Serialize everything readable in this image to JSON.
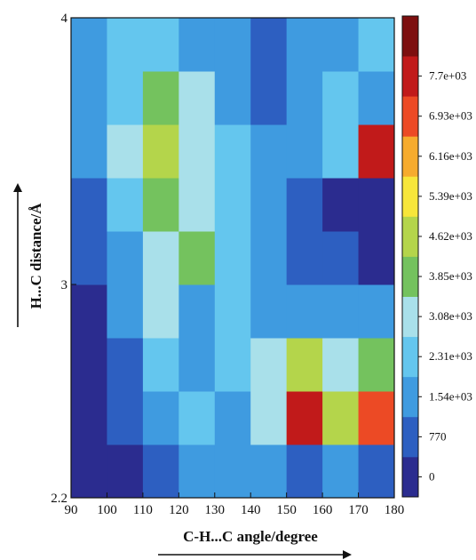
{
  "chart_data": {
    "type": "heatmap",
    "subtype": "filled-contour",
    "title": "",
    "xlabel": "C-H...C angle/degree",
    "ylabel": "H...C distance/Å",
    "xlim": [
      90,
      180
    ],
    "ylim": [
      2.2,
      4
    ],
    "x_ticks": [
      "90",
      "100",
      "110",
      "120",
      "130",
      "140",
      "150",
      "160",
      "170",
      "180"
    ],
    "y_ticks": [
      "2.2",
      "3",
      "4"
    ],
    "x_axis_arrow": "right",
    "y_axis_arrow": "up",
    "colorbar": {
      "position": "right",
      "labels": [
        "0",
        "770",
        "1.54e+03",
        "2.31e+03",
        "3.08e+03",
        "3.85e+03",
        "4.62e+03",
        "5.39e+03",
        "6.16e+03",
        "6.93e+03",
        "7.7e+03"
      ],
      "colors": [
        "#2b2c8f",
        "#2d5fc1",
        "#3f9be0",
        "#64c6ee",
        "#a9e0ea",
        "#74c25e",
        "#b4d54b",
        "#f7e63a",
        "#f6ab2e",
        "#ec4a25",
        "#c11a1a",
        "#7d0f0f"
      ]
    },
    "background_level": 0,
    "x": [
      95,
      105,
      115,
      125,
      135,
      145,
      155,
      165,
      175
    ],
    "y": [
      2.3,
      2.5,
      2.7,
      2.9,
      3.1,
      3.3,
      3.5,
      3.7,
      3.9
    ],
    "z_levels": [
      [
        0,
        0,
        1,
        2,
        2,
        2,
        1,
        2,
        1
      ],
      [
        0,
        1,
        2,
        3,
        2,
        4,
        10,
        6,
        9
      ],
      [
        0,
        1,
        3,
        2,
        3,
        4,
        6,
        4,
        5
      ],
      [
        0,
        2,
        4,
        2,
        3,
        2,
        2,
        2,
        2
      ],
      [
        1,
        2,
        4,
        5,
        3,
        2,
        1,
        1,
        0
      ],
      [
        1,
        3,
        5,
        4,
        3,
        2,
        1,
        0,
        0
      ],
      [
        2,
        4,
        6,
        4,
        3,
        2,
        2,
        3,
        10
      ],
      [
        2,
        3,
        5,
        4,
        2,
        1,
        2,
        3,
        2
      ],
      [
        2,
        3,
        3,
        2,
        2,
        1,
        2,
        2,
        3
      ]
    ]
  }
}
